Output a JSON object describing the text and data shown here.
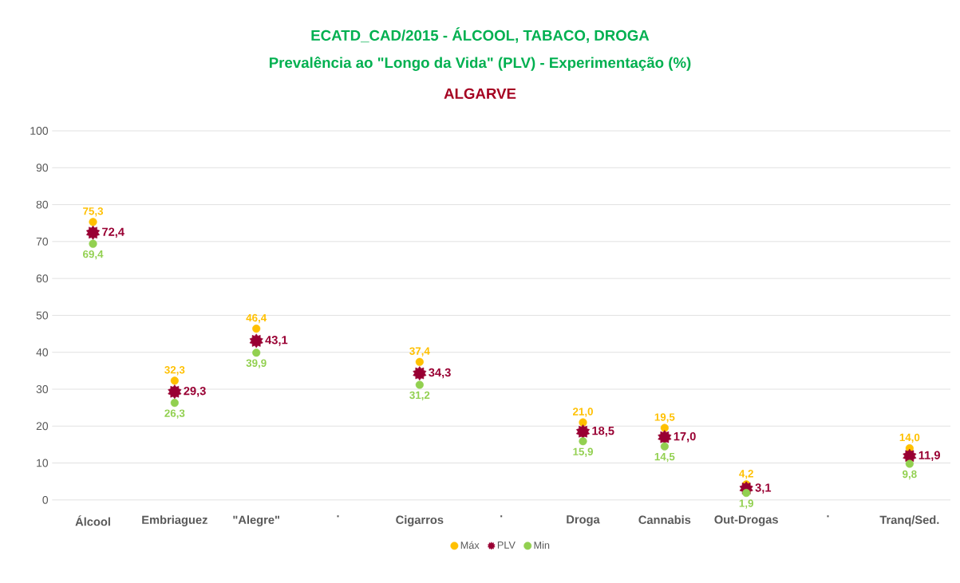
{
  "chart_data": {
    "type": "scatter",
    "title": "ECATD_CAD/2015 - ÁLCOOL, TABACO, DROGA",
    "subtitle": "Prevalência ao \"Longo da Vida\" (PLV) - Experimentação (%)",
    "annotations": [
      "ALGARVE"
    ],
    "categories": [
      "Álcool",
      "Embriaguez",
      "\"Alegre\"",
      ".",
      "Cigarros",
      ".",
      "Droga",
      "Cannabis",
      "Out-Drogas",
      ".",
      "Tranq/Sed."
    ],
    "series": [
      {
        "name": "Máx",
        "color": "#ffc000",
        "marker": "circle",
        "values": [
          75.3,
          32.3,
          46.4,
          null,
          37.4,
          null,
          21.0,
          19.5,
          4.2,
          null,
          14.0
        ],
        "value_labels": [
          "75,3",
          "32,3",
          "46,4",
          null,
          "37,4",
          null,
          "21,0",
          "19,5",
          "4,2",
          null,
          "14,0"
        ]
      },
      {
        "name": "PLV",
        "color": "#990033",
        "marker": "star",
        "values": [
          72.4,
          29.3,
          43.1,
          null,
          34.3,
          null,
          18.5,
          17.0,
          3.1,
          null,
          11.9
        ],
        "value_labels": [
          "72,4",
          "29,3",
          "43,1",
          null,
          "34,3",
          null,
          "18,5",
          "17,0",
          "3,1",
          null,
          "11,9"
        ]
      },
      {
        "name": "Min",
        "color": "#92d050",
        "marker": "circle",
        "values": [
          69.4,
          26.3,
          39.9,
          null,
          31.2,
          null,
          15.9,
          14.5,
          1.9,
          null,
          9.8
        ],
        "value_labels": [
          "69,4",
          "26,3",
          "39,9",
          null,
          "31,2",
          null,
          "15,9",
          "14,5",
          "1,9",
          null,
          "9,8"
        ]
      }
    ],
    "ylim": [
      0,
      100
    ],
    "yticks": [
      0,
      10,
      20,
      30,
      40,
      50,
      60,
      70,
      80,
      90,
      100
    ],
    "grid": "y",
    "legend": "bottom"
  }
}
